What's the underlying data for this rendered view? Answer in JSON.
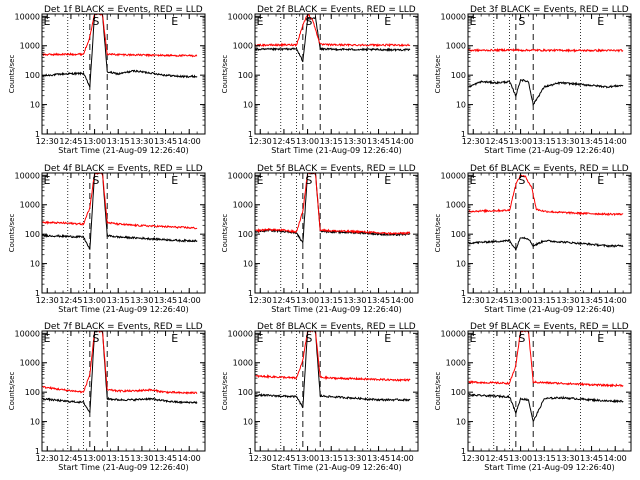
{
  "figure": {
    "title_template": "Det {id} BLACK = Events, RED = LLD",
    "ylabel": "Counts/sec",
    "xlabel": "Start Time (21-Aug-09 12:26:40)",
    "x_tick_labels": [
      "12:30",
      "12:45",
      "13:00",
      "13:15",
      "13:30",
      "13:45",
      "14:00"
    ],
    "y_tick_labels": [
      "1",
      "10",
      "100",
      "1000",
      "10000"
    ],
    "markers": {
      "E": "E",
      "S": "S"
    },
    "colors": {
      "events": "#000000",
      "lld": "#ff0000",
      "axis": "#000000"
    }
  },
  "chart_data": [
    {
      "type": "line",
      "title": "Det 1f BLACK = Events, RED = LLD",
      "detector": "1f",
      "ylabel": "Counts/sec",
      "xlabel": "Start Time (21-Aug-09 12:26:40)",
      "y_scale": "log",
      "xlim": [
        "12:26:40",
        "14:10:00"
      ],
      "ylim": [
        1,
        12000
      ],
      "event_lines_dotted": [
        "12:43",
        "12:53",
        "13:38"
      ],
      "event_lines_dashed": [
        "12:57",
        "13:08"
      ],
      "markers": [
        {
          "label": "E",
          "x": "12:27"
        },
        {
          "label": "S",
          "x": "12:58"
        },
        {
          "label": "E",
          "x": "13:48"
        }
      ],
      "series": [
        {
          "name": "Events",
          "color": "#000000",
          "x": [
            "12:27",
            "12:40",
            "12:53",
            "12:57",
            "13:00",
            "13:05",
            "13:08",
            "13:15",
            "13:25",
            "13:35",
            "13:45",
            "13:55",
            "14:05"
          ],
          "y": [
            95,
            110,
            115,
            40,
            12000,
            12000,
            130,
            110,
            140,
            120,
            100,
            90,
            90
          ]
        },
        {
          "name": "LLD",
          "color": "#ff0000",
          "x": [
            "12:27",
            "12:40",
            "12:53",
            "12:57",
            "13:00",
            "13:05",
            "13:08",
            "13:15",
            "13:25",
            "13:35",
            "13:45",
            "13:55",
            "14:05"
          ],
          "y": [
            500,
            510,
            520,
            2000,
            12000,
            12000,
            520,
            500,
            490,
            480,
            470,
            460,
            460
          ]
        }
      ]
    },
    {
      "type": "line",
      "title": "Det 2f BLACK = Events, RED = LLD",
      "detector": "2f",
      "ylabel": "Counts/sec",
      "xlabel": "Start Time (21-Aug-09 12:26:40)",
      "y_scale": "log",
      "xlim": [
        "12:26:40",
        "14:10:00"
      ],
      "ylim": [
        1,
        12000
      ],
      "event_lines_dotted": [
        "12:43",
        "12:53",
        "13:38"
      ],
      "event_lines_dashed": [
        "12:57",
        "13:08"
      ],
      "markers": [
        {
          "label": "E",
          "x": "12:27"
        },
        {
          "label": "S",
          "x": "12:58"
        },
        {
          "label": "E",
          "x": "13:48"
        }
      ],
      "series": [
        {
          "name": "Events",
          "color": "#000000",
          "x": [
            "12:27",
            "12:40",
            "12:53",
            "12:57",
            "13:00",
            "13:05",
            "13:08",
            "13:15",
            "13:25",
            "13:35",
            "13:45",
            "13:55",
            "14:05"
          ],
          "y": [
            750,
            760,
            780,
            300,
            8000,
            9000,
            780,
            760,
            750,
            740,
            740,
            730,
            730
          ]
        },
        {
          "name": "LLD",
          "color": "#ff0000",
          "x": [
            "12:27",
            "12:40",
            "12:53",
            "12:57",
            "13:00",
            "13:03",
            "13:08",
            "13:15",
            "13:25",
            "13:35",
            "13:45",
            "13:55",
            "14:05"
          ],
          "y": [
            1050,
            1060,
            1080,
            5000,
            12000,
            8000,
            1100,
            1080,
            1070,
            1060,
            1060,
            1050,
            1050
          ]
        }
      ]
    },
    {
      "type": "line",
      "title": "Det 3f BLACK = Events, RED = LLD",
      "detector": "3f",
      "ylabel": "Counts/sec",
      "xlabel": "Start Time (21-Aug-09 12:26:40)",
      "y_scale": "log",
      "xlim": [
        "12:26:40",
        "14:10:00"
      ],
      "ylim": [
        1,
        12000
      ],
      "event_lines_dotted": [
        "12:43",
        "12:53",
        "13:38"
      ],
      "event_lines_dashed": [
        "12:57",
        "13:08"
      ],
      "markers": [
        {
          "label": "E",
          "x": "12:27"
        },
        {
          "label": "S",
          "x": "12:58"
        },
        {
          "label": "E",
          "x": "13:48"
        }
      ],
      "series": [
        {
          "name": "Events",
          "color": "#000000",
          "x": [
            "12:27",
            "12:35",
            "12:45",
            "12:53",
            "12:57",
            "13:00",
            "13:05",
            "13:08",
            "13:15",
            "13:25",
            "13:35",
            "13:45",
            "13:55",
            "14:05"
          ],
          "y": [
            40,
            60,
            55,
            60,
            20,
            70,
            60,
            10,
            40,
            55,
            50,
            45,
            40,
            45
          ]
        },
        {
          "name": "LLD",
          "color": "#ff0000",
          "x": [
            "12:27",
            "12:40",
            "12:53",
            "12:57",
            "13:00",
            "13:08",
            "13:15",
            "13:25",
            "13:35",
            "13:45",
            "13:55",
            "14:05"
          ],
          "y": [
            700,
            700,
            720,
            720,
            700,
            710,
            700,
            700,
            690,
            690,
            690,
            690
          ]
        }
      ]
    },
    {
      "type": "line",
      "title": "Det 4f BLACK = Events, RED = LLD",
      "detector": "4f",
      "ylabel": "Counts/sec",
      "xlabel": "Start Time (21-Aug-09 12:26:40)",
      "y_scale": "log",
      "xlim": [
        "12:26:40",
        "14:10:00"
      ],
      "ylim": [
        1,
        12000
      ],
      "event_lines_dotted": [
        "12:43",
        "12:53",
        "13:38"
      ],
      "event_lines_dashed": [
        "12:57",
        "13:08"
      ],
      "markers": [
        {
          "label": "E",
          "x": "12:27"
        },
        {
          "label": "S",
          "x": "12:58"
        },
        {
          "label": "E",
          "x": "13:48"
        }
      ],
      "series": [
        {
          "name": "Events",
          "color": "#000000",
          "x": [
            "12:27",
            "12:40",
            "12:53",
            "12:57",
            "13:00",
            "13:05",
            "13:08",
            "13:15",
            "13:25",
            "13:35",
            "13:45",
            "13:55",
            "14:05"
          ],
          "y": [
            90,
            85,
            80,
            30,
            12000,
            12000,
            90,
            80,
            75,
            70,
            65,
            60,
            60
          ]
        },
        {
          "name": "LLD",
          "color": "#ff0000",
          "x": [
            "12:27",
            "12:40",
            "12:53",
            "12:57",
            "13:00",
            "13:05",
            "13:08",
            "13:15",
            "13:25",
            "13:35",
            "13:45",
            "13:55",
            "14:05"
          ],
          "y": [
            250,
            240,
            220,
            800,
            12000,
            12000,
            250,
            220,
            200,
            190,
            180,
            170,
            160
          ]
        }
      ]
    },
    {
      "type": "line",
      "title": "Det 5f BLACK = Events, RED = LLD",
      "detector": "5f",
      "ylabel": "Counts/sec",
      "xlabel": "Start Time (21-Aug-09 12:26:40)",
      "y_scale": "log",
      "xlim": [
        "12:26:40",
        "14:10:00"
      ],
      "ylim": [
        1,
        12000
      ],
      "event_lines_dotted": [
        "12:43",
        "12:53",
        "13:38"
      ],
      "event_lines_dashed": [
        "12:57",
        "13:08"
      ],
      "markers": [
        {
          "label": "E",
          "x": "12:27"
        },
        {
          "label": "S",
          "x": "12:58"
        },
        {
          "label": "E",
          "x": "13:48"
        }
      ],
      "series": [
        {
          "name": "Events",
          "color": "#000000",
          "x": [
            "12:27",
            "12:35",
            "12:45",
            "12:53",
            "12:57",
            "13:00",
            "13:05",
            "13:08",
            "13:15",
            "13:25",
            "13:35",
            "13:45",
            "13:55",
            "14:05"
          ],
          "y": [
            120,
            135,
            125,
            110,
            50,
            12000,
            12000,
            130,
            120,
            115,
            110,
            100,
            95,
            100
          ]
        },
        {
          "name": "LLD",
          "color": "#ff0000",
          "x": [
            "12:27",
            "12:35",
            "12:45",
            "12:53",
            "12:57",
            "13:00",
            "13:05",
            "13:08",
            "13:15",
            "13:25",
            "13:35",
            "13:45",
            "13:55",
            "14:05"
          ],
          "y": [
            130,
            145,
            135,
            120,
            600,
            12000,
            12000,
            140,
            130,
            125,
            120,
            110,
            105,
            110
          ]
        }
      ]
    },
    {
      "type": "line",
      "title": "Det 6f BLACK = Events, RED = LLD",
      "detector": "6f",
      "ylabel": "Counts/sec",
      "xlabel": "Start Time (21-Aug-09 12:26:40)",
      "y_scale": "log",
      "xlim": [
        "12:26:40",
        "14:10:00"
      ],
      "ylim": [
        1,
        12000
      ],
      "event_lines_dotted": [
        "12:43",
        "12:53",
        "13:38"
      ],
      "event_lines_dashed": [
        "12:57",
        "13:08"
      ],
      "markers": [
        {
          "label": "E",
          "x": "12:27"
        },
        {
          "label": "S",
          "x": "12:58"
        },
        {
          "label": "E",
          "x": "13:48"
        }
      ],
      "series": [
        {
          "name": "Events",
          "color": "#000000",
          "x": [
            "12:27",
            "12:40",
            "12:53",
            "12:57",
            "13:00",
            "13:05",
            "13:08",
            "13:15",
            "13:25",
            "13:35",
            "13:45",
            "13:55",
            "14:05"
          ],
          "y": [
            50,
            55,
            60,
            30,
            80,
            70,
            40,
            60,
            55,
            50,
            45,
            40,
            40
          ]
        },
        {
          "name": "LLD",
          "color": "#ff0000",
          "x": [
            "12:27",
            "12:40",
            "12:53",
            "12:57",
            "13:00",
            "13:03",
            "13:07",
            "13:10",
            "13:15",
            "13:25",
            "13:35",
            "13:45",
            "13:55",
            "14:05"
          ],
          "y": [
            600,
            620,
            650,
            5000,
            10000,
            9000,
            4000,
            700,
            600,
            550,
            520,
            500,
            480,
            480
          ]
        }
      ]
    },
    {
      "type": "line",
      "title": "Det 7f BLACK = Events, RED = LLD",
      "detector": "7f",
      "ylabel": "Counts/sec",
      "xlabel": "Start Time (21-Aug-09 12:26:40)",
      "y_scale": "log",
      "xlim": [
        "12:26:40",
        "14:10:00"
      ],
      "ylim": [
        1,
        12000
      ],
      "event_lines_dotted": [
        "12:43",
        "12:53",
        "13:38"
      ],
      "event_lines_dashed": [
        "12:57",
        "13:08"
      ],
      "markers": [
        {
          "label": "E",
          "x": "12:27"
        },
        {
          "label": "S",
          "x": "12:58"
        },
        {
          "label": "E",
          "x": "13:48"
        }
      ],
      "series": [
        {
          "name": "Events",
          "color": "#000000",
          "x": [
            "12:27",
            "12:40",
            "12:53",
            "12:57",
            "13:00",
            "13:05",
            "13:08",
            "13:15",
            "13:25",
            "13:35",
            "13:45",
            "13:55",
            "14:05"
          ],
          "y": [
            60,
            50,
            45,
            20,
            12000,
            12000,
            60,
            55,
            55,
            60,
            50,
            45,
            45
          ]
        },
        {
          "name": "LLD",
          "color": "#ff0000",
          "x": [
            "12:27",
            "12:40",
            "12:53",
            "12:57",
            "13:00",
            "13:05",
            "13:08",
            "13:15",
            "13:25",
            "13:35",
            "13:45",
            "13:55",
            "14:05"
          ],
          "y": [
            150,
            120,
            100,
            400,
            12000,
            12000,
            120,
            110,
            110,
            120,
            100,
            95,
            95
          ]
        }
      ]
    },
    {
      "type": "line",
      "title": "Det 8f BLACK = Events, RED = LLD",
      "detector": "8f",
      "ylabel": "Counts/sec",
      "xlabel": "Start Time (21-Aug-09 12:26:40)",
      "y_scale": "log",
      "xlim": [
        "12:26:40",
        "14:10:00"
      ],
      "ylim": [
        1,
        12000
      ],
      "event_lines_dotted": [
        "12:43",
        "12:53",
        "13:38"
      ],
      "event_lines_dashed": [
        "12:57",
        "13:08"
      ],
      "markers": [
        {
          "label": "E",
          "x": "12:27"
        },
        {
          "label": "S",
          "x": "12:58"
        },
        {
          "label": "E",
          "x": "13:48"
        }
      ],
      "series": [
        {
          "name": "Events",
          "color": "#000000",
          "x": [
            "12:27",
            "12:40",
            "12:53",
            "12:57",
            "13:00",
            "13:05",
            "13:08",
            "13:15",
            "13:25",
            "13:35",
            "13:45",
            "13:55",
            "14:05"
          ],
          "y": [
            80,
            75,
            70,
            30,
            12000,
            12000,
            75,
            70,
            65,
            60,
            55,
            55,
            55
          ]
        },
        {
          "name": "LLD",
          "color": "#ff0000",
          "x": [
            "12:27",
            "12:40",
            "12:53",
            "12:57",
            "13:00",
            "13:05",
            "13:08",
            "13:15",
            "13:25",
            "13:35",
            "13:45",
            "13:55",
            "14:05"
          ],
          "y": [
            350,
            330,
            300,
            1200,
            12000,
            12000,
            320,
            300,
            290,
            280,
            270,
            260,
            260
          ]
        }
      ]
    },
    {
      "type": "line",
      "title": "Det 9f BLACK = Events, RED = LLD",
      "detector": "9f",
      "ylabel": "Counts/sec",
      "xlabel": "Start Time (21-Aug-09 12:26:40)",
      "y_scale": "log",
      "xlim": [
        "12:26:40",
        "14:10:00"
      ],
      "ylim": [
        1,
        12000
      ],
      "event_lines_dotted": [
        "12:43",
        "12:53",
        "13:38"
      ],
      "event_lines_dashed": [
        "12:57",
        "13:08"
      ],
      "markers": [
        {
          "label": "E",
          "x": "12:27"
        },
        {
          "label": "S",
          "x": "12:58"
        },
        {
          "label": "E",
          "x": "13:48"
        }
      ],
      "series": [
        {
          "name": "Events",
          "color": "#000000",
          "x": [
            "12:27",
            "12:40",
            "12:53",
            "12:57",
            "13:00",
            "13:05",
            "13:08",
            "13:15",
            "13:25",
            "13:35",
            "13:45",
            "13:55",
            "14:05"
          ],
          "y": [
            80,
            75,
            70,
            20,
            60,
            55,
            10,
            60,
            65,
            60,
            55,
            50,
            50
          ]
        },
        {
          "name": "LLD",
          "color": "#ff0000",
          "x": [
            "12:27",
            "12:40",
            "12:53",
            "12:57",
            "13:00",
            "13:05",
            "13:08",
            "13:15",
            "13:25",
            "13:35",
            "13:45",
            "13:55",
            "14:05"
          ],
          "y": [
            220,
            210,
            200,
            800,
            12000,
            12000,
            220,
            210,
            200,
            190,
            180,
            170,
            170
          ]
        }
      ]
    }
  ]
}
